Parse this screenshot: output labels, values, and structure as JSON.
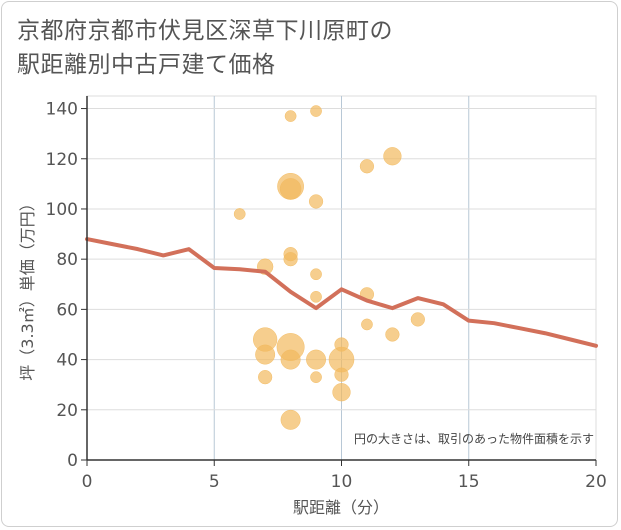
{
  "chart_data": {
    "type": "scatter",
    "title": "京都府京都市伏見区深草下川原町の\n駅距離別中古戸建て価格",
    "xlabel": "駅距離（分）",
    "ylabel": "坪（3.3㎡）単価（万円）",
    "xlim": [
      0,
      20
    ],
    "ylim": [
      0,
      145
    ],
    "xticks": [
      0,
      5,
      10,
      15,
      20
    ],
    "yticks": [
      0,
      20,
      40,
      60,
      80,
      100,
      120,
      140
    ],
    "grid": true,
    "note": "円の大きさは、取引のあった物件面積を示す",
    "bubble_color": "#F2B95E",
    "line_color": "#D2705A",
    "points": [
      {
        "x": 6,
        "y": 98,
        "size": 1
      },
      {
        "x": 7,
        "y": 77,
        "size": 2
      },
      {
        "x": 7,
        "y": 48,
        "size": 4.5
      },
      {
        "x": 7,
        "y": 42,
        "size": 3
      },
      {
        "x": 7,
        "y": 33,
        "size": 1.5
      },
      {
        "x": 8,
        "y": 137,
        "size": 1
      },
      {
        "x": 8,
        "y": 109,
        "size": 5.5
      },
      {
        "x": 8,
        "y": 108,
        "size": 3.5
      },
      {
        "x": 8,
        "y": 82,
        "size": 1.5
      },
      {
        "x": 8,
        "y": 80,
        "size": 1.5
      },
      {
        "x": 8,
        "y": 45,
        "size": 6
      },
      {
        "x": 8,
        "y": 40,
        "size": 3
      },
      {
        "x": 8,
        "y": 16,
        "size": 3
      },
      {
        "x": 9,
        "y": 139,
        "size": 1
      },
      {
        "x": 9,
        "y": 103,
        "size": 1.5
      },
      {
        "x": 9,
        "y": 74,
        "size": 1
      },
      {
        "x": 9,
        "y": 65,
        "size": 1
      },
      {
        "x": 9,
        "y": 40,
        "size": 3
      },
      {
        "x": 9,
        "y": 33,
        "size": 1
      },
      {
        "x": 10,
        "y": 46,
        "size": 1.5
      },
      {
        "x": 10,
        "y": 40,
        "size": 5
      },
      {
        "x": 10,
        "y": 34,
        "size": 1.5
      },
      {
        "x": 10,
        "y": 27,
        "size": 2.5
      },
      {
        "x": 11,
        "y": 117,
        "size": 1.5
      },
      {
        "x": 11,
        "y": 66,
        "size": 1.5
      },
      {
        "x": 11,
        "y": 54,
        "size": 1
      },
      {
        "x": 12,
        "y": 121,
        "size": 2.5
      },
      {
        "x": 12,
        "y": 50,
        "size": 1.5
      },
      {
        "x": 13,
        "y": 56,
        "size": 1.5
      }
    ],
    "line": {
      "x": [
        0,
        1,
        2,
        3,
        4,
        5,
        6,
        7,
        8,
        9,
        10,
        11,
        12,
        13,
        14,
        15,
        16,
        17,
        18,
        19,
        20
      ],
      "y": [
        88,
        86,
        84,
        81.5,
        84,
        76.5,
        76,
        75,
        67,
        60.5,
        68,
        63.5,
        60.5,
        64.5,
        62,
        55.5,
        54.5,
        52.5,
        50.5,
        48,
        45.5
      ]
    }
  }
}
